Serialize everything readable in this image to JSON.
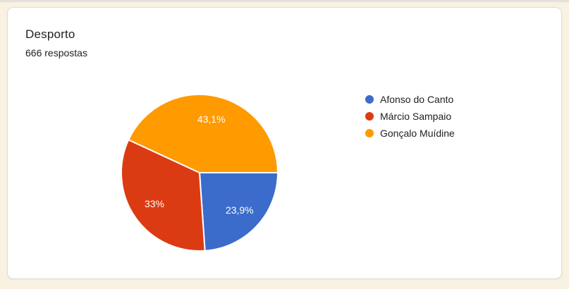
{
  "page": {
    "background_color": "#f9f1e1",
    "top_strip_color": "#e3e1dc"
  },
  "card": {
    "title": "Desporto",
    "subtitle": "666 respostas",
    "border_color": "#dadce0"
  },
  "chart_data": {
    "type": "pie",
    "title": "Desporto",
    "subtitle": "666 respostas",
    "legend_position": "right",
    "start_angle_deg": 0,
    "direction": "clockwise",
    "slice_label_color": "#ffffff",
    "slice_separator_color": "#ffffff",
    "slices": [
      {
        "label": "Afonso do Canto",
        "value_pct": 23.9,
        "display": "23,9%",
        "color": "#3b6ccb"
      },
      {
        "label": "Márcio Sampaio",
        "value_pct": 33.0,
        "display": "33%",
        "color": "#db3b13"
      },
      {
        "label": "Gonçalo Muídine",
        "value_pct": 43.1,
        "display": "43,1%",
        "color": "#ff9a00"
      }
    ]
  }
}
